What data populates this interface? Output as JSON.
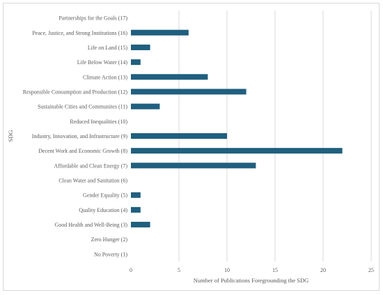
{
  "chart_data": {
    "type": "bar",
    "orientation": "horizontal",
    "categories": [
      "Partnerships for the Goals (17)",
      "Peace, Justice, and Strong Institutions (16)",
      "Life on Land (15)",
      "Life Below Water (14)",
      "Climate Action (13)",
      "Responsible Consumption and Production (12)",
      "Sustainable Cities and Communites (11)",
      "Reduced Inequalities (10)",
      "Industry, Innovation, and Infrastructure (9)",
      "Decent Work and Economic Growth (8)",
      "Affordable and Clean Energy (7)",
      "Clean Water and Sanitation (6)",
      "Gender Equality (5)",
      "Quality Education (4)",
      "Good Health and Well-Being (3)",
      "Zero Hunger (2)",
      "No Poverty (1)"
    ],
    "values": [
      0,
      6,
      2,
      1,
      8,
      12,
      3,
      0,
      10,
      22,
      13,
      0,
      1,
      1,
      2,
      0,
      0
    ],
    "xlabel": "Number of Publications Foregrounding the SDG",
    "ylabel": "SDG",
    "xlim": [
      0,
      25
    ],
    "xticks": [
      0,
      5,
      10,
      15,
      20,
      25
    ],
    "grid": "vertical",
    "legend": "none",
    "bar_color": "#1f5f7f",
    "grid_color": "#d9d9d9"
  }
}
